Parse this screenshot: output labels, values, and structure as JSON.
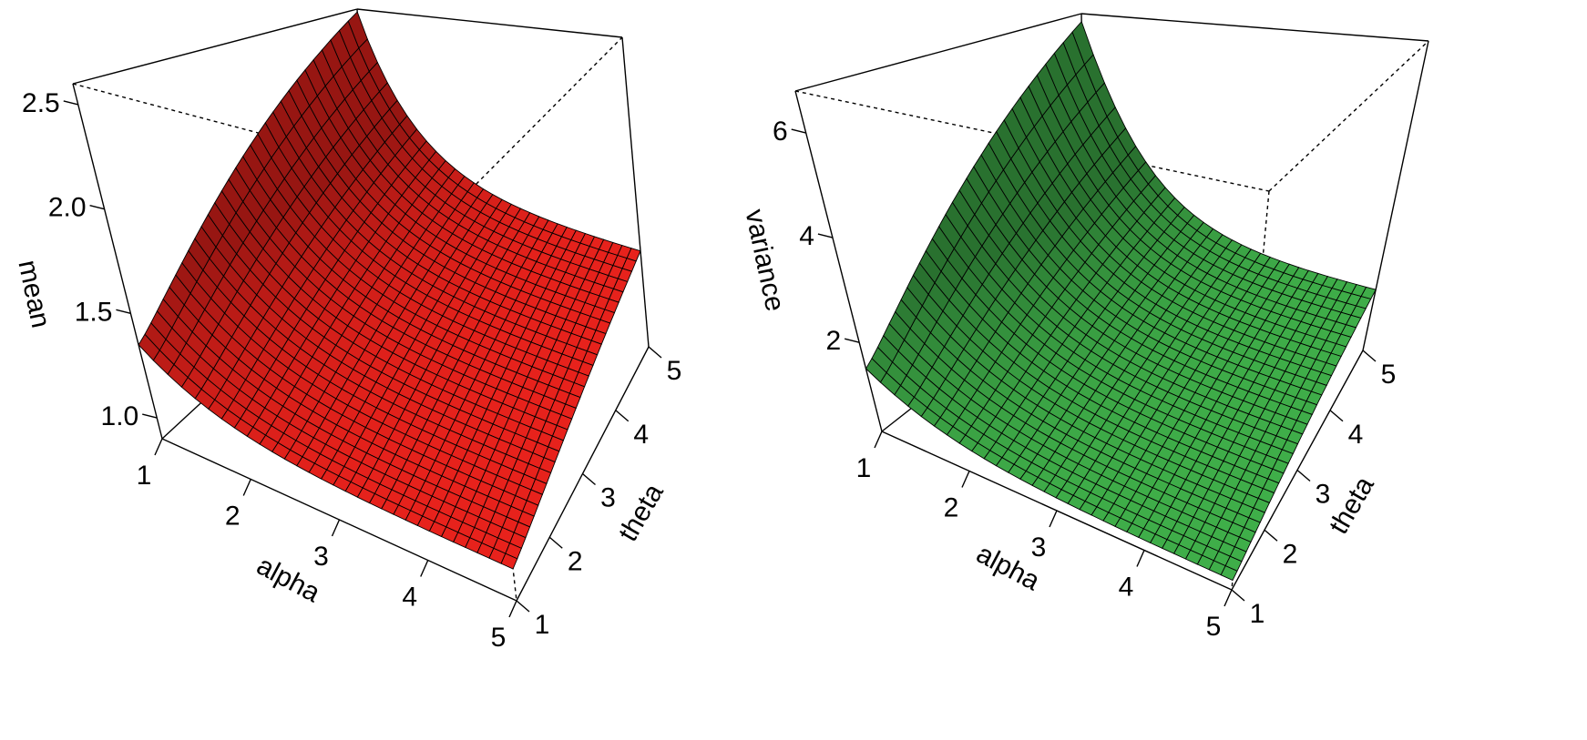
{
  "chart_data": [
    {
      "type": "surface",
      "xlabel": "alpha",
      "ylabel": "theta",
      "zlabel": "mean",
      "xlim": [
        1,
        5
      ],
      "ylim": [
        1,
        5
      ],
      "zlim": [
        0.9,
        2.6
      ],
      "x_ticks": [
        1,
        2,
        3,
        4,
        5
      ],
      "y_ticks": [
        1,
        2,
        3,
        4,
        5
      ],
      "z_ticks": [
        1.0,
        1.5,
        2.0,
        2.5
      ],
      "x_tick_labels": [
        "1",
        "2",
        "3",
        "4",
        "5"
      ],
      "y_tick_labels": [
        "1",
        "2",
        "3",
        "4",
        "5"
      ],
      "z_tick_labels": [
        "1.0",
        "1.5",
        "2.0",
        "2.5"
      ],
      "surface_color": "#e8221c",
      "grid_points": 30,
      "corner_values": {
        "alpha1_theta5": 2.58,
        "alpha1_theta1": 1.35,
        "alpha5_theta5": 1.42,
        "alpha5_theta1": 1.03
      }
    },
    {
      "type": "surface",
      "xlabel": "alpha",
      "ylabel": "theta",
      "zlabel": "variance",
      "xlim": [
        1,
        5
      ],
      "ylim": [
        1,
        5
      ],
      "zlim": [
        0.3,
        6.8
      ],
      "x_ticks": [
        1,
        2,
        3,
        4,
        5
      ],
      "y_ticks": [
        1,
        2,
        3,
        4,
        5
      ],
      "z_ticks": [
        2,
        4,
        6
      ],
      "x_tick_labels": [
        "1",
        "2",
        "3",
        "4",
        "5"
      ],
      "y_tick_labels": [
        "1",
        "2",
        "3",
        "4",
        "5"
      ],
      "z_tick_labels": [
        "2",
        "4",
        "6"
      ],
      "surface_color": "#3fae49",
      "grid_points": 30,
      "corner_values": {
        "alpha1_theta5": 6.6,
        "alpha1_theta1": 1.5,
        "alpha5_theta5": 1.55,
        "alpha5_theta1": 0.45
      }
    }
  ]
}
